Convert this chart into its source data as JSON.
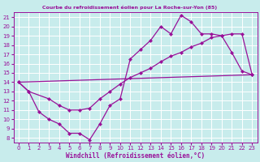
{
  "title": "Courbe du refroidissement éolien pour La Roche-sur-Yon (85)",
  "xlabel": "Windchill (Refroidissement éolien,°C)",
  "bg_color": "#c8ecec",
  "line_color": "#991199",
  "grid_color": "#ffffff",
  "xlim": [
    -0.5,
    23.5
  ],
  "ylim": [
    7.5,
    21.5
  ],
  "xticks": [
    0,
    1,
    2,
    3,
    4,
    5,
    6,
    7,
    8,
    9,
    10,
    11,
    12,
    13,
    14,
    15,
    16,
    17,
    18,
    19,
    20,
    21,
    22,
    23
  ],
  "yticks": [
    8,
    9,
    10,
    11,
    12,
    13,
    14,
    15,
    16,
    17,
    18,
    19,
    20,
    21
  ],
  "line1_x": [
    0,
    1,
    2,
    3,
    4,
    5,
    6,
    7,
    8,
    9,
    10,
    11,
    12,
    13,
    14,
    15,
    16,
    17,
    18,
    19,
    20,
    21,
    22,
    23
  ],
  "line1_y": [
    14.0,
    13.0,
    10.8,
    10.0,
    9.5,
    8.5,
    8.5,
    7.8,
    9.5,
    11.5,
    12.2,
    16.5,
    17.5,
    18.5,
    20.0,
    19.2,
    21.2,
    20.5,
    19.2,
    19.2,
    19.0,
    17.2,
    15.2,
    14.8
  ],
  "line2_x": [
    0,
    1,
    3,
    4,
    5,
    6,
    7,
    8,
    9,
    10,
    11,
    12,
    13,
    14,
    15,
    16,
    17,
    18,
    19,
    20,
    21,
    22,
    23
  ],
  "line2_y": [
    14.0,
    13.0,
    12.2,
    11.5,
    11.0,
    11.0,
    11.2,
    12.2,
    13.0,
    13.8,
    14.5,
    15.0,
    15.5,
    16.2,
    16.8,
    17.2,
    17.8,
    18.2,
    18.8,
    19.0,
    19.2,
    19.2,
    14.8
  ],
  "line3_x": [
    0,
    23
  ],
  "line3_y": [
    14.0,
    14.8
  ]
}
